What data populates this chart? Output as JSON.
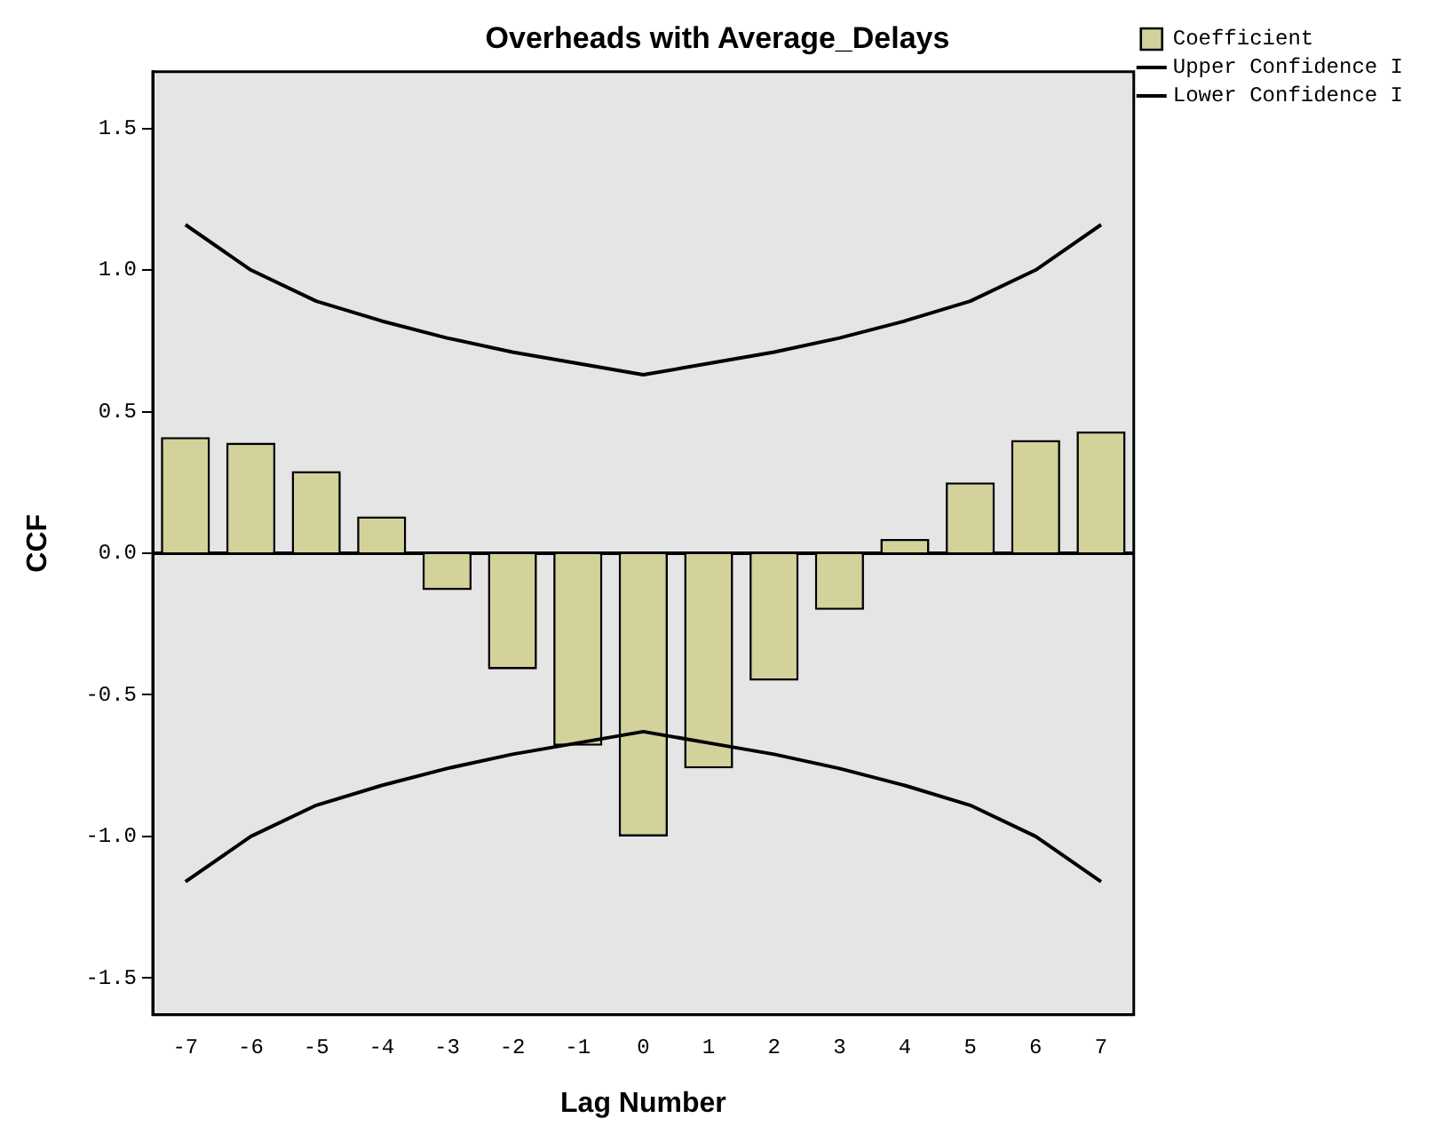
{
  "chart_data": {
    "type": "bar",
    "title": "Overheads with Average_Delays",
    "xlabel": "Lag Number",
    "ylabel": "CCF",
    "categories": [
      "-7",
      "-6",
      "-5",
      "-4",
      "-3",
      "-2",
      "-1",
      "0",
      "1",
      "2",
      "3",
      "4",
      "5",
      "6",
      "7"
    ],
    "series": [
      {
        "name": "Coefficient",
        "color": "#d2d29a",
        "values": [
          0.41,
          0.39,
          0.29,
          0.13,
          -0.13,
          -0.41,
          -0.68,
          -1.0,
          -0.76,
          -0.45,
          -0.2,
          0.05,
          0.25,
          0.4,
          0.43
        ]
      },
      {
        "name": "Upper Confidence I",
        "type": "line",
        "color": "#000000",
        "values": [
          1.16,
          1.0,
          0.89,
          0.82,
          0.76,
          0.71,
          0.67,
          0.63,
          0.67,
          0.71,
          0.76,
          0.82,
          0.89,
          1.0,
          1.16
        ]
      },
      {
        "name": "Lower Confidence I",
        "type": "line",
        "color": "#000000",
        "values": [
          -1.16,
          -1.0,
          -0.89,
          -0.82,
          -0.76,
          -0.71,
          -0.67,
          -0.63,
          -0.67,
          -0.71,
          -0.76,
          -0.82,
          -0.89,
          -1.0,
          -1.16
        ]
      }
    ],
    "ylim": [
      -1.63,
      1.7
    ],
    "yticks": [
      -1.5,
      {
        "value": -1,
        "label": "-1.0"
      },
      -0.5,
      {
        "value": 0,
        "label": "0.0"
      },
      0.5,
      {
        "value": 1,
        "label": "1.0"
      },
      1.5
    ],
    "ref_lines": [
      {
        "axis": "y",
        "value": 0
      }
    ],
    "grid": false,
    "legend": "top right",
    "marker": "none",
    "line_style": "solid"
  }
}
